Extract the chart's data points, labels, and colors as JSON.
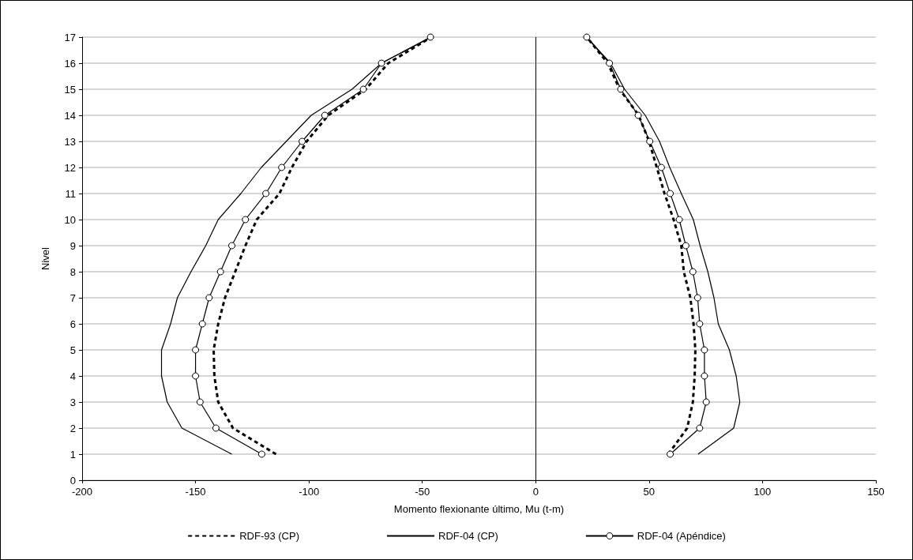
{
  "chart_data": {
    "type": "line",
    "xlabel": "Momento flexionante último, Mu (t-m)",
    "ylabel": "Nivel",
    "xlim": [
      -200,
      150
    ],
    "xticks": [
      -200,
      -150,
      -100,
      -50,
      0,
      50,
      100,
      150
    ],
    "ylim": [
      0,
      17
    ],
    "yticks": [
      0,
      1,
      2,
      3,
      4,
      5,
      6,
      7,
      8,
      9,
      10,
      11,
      12,
      13,
      14,
      15,
      16,
      17
    ],
    "grid": "y",
    "legend": "bottom",
    "ref_lines": [
      {
        "axis": "x",
        "value": 0,
        "color": "#000000"
      }
    ],
    "series": [
      {
        "name": "RDF-93 (CP)",
        "color": "#000000",
        "line_style": "dashed",
        "marker": "none",
        "x": [
          -114.5,
          -133.5,
          -140,
          -141.7,
          -142,
          -140,
          -137,
          -132.5,
          -128,
          -123,
          -113,
          -107.5,
          -101,
          -91.5,
          -75,
          -65,
          -46,
          null,
          58.5,
          66.8,
          69.3,
          70.1,
          70.4,
          69.6,
          68.2,
          65.3,
          64.2,
          60.8,
          56.8,
          53.4,
          50,
          45.4,
          37,
          31.8,
          22.5
        ],
        "values": [
          1,
          2,
          3,
          4,
          5,
          6,
          7,
          8,
          9,
          10,
          11,
          12,
          13,
          14,
          15,
          16,
          17,
          null,
          1,
          2,
          3,
          4,
          5,
          6,
          7,
          8,
          9,
          10,
          11,
          12,
          13,
          14,
          15,
          16,
          17
        ]
      },
      {
        "name": "RDF-04 (CP)",
        "color": "#000000",
        "line_style": "solid",
        "marker": "none",
        "x": [
          -134,
          -156,
          -162.5,
          -165,
          -165,
          -161,
          -158,
          -152,
          -145.5,
          -140,
          -130,
          -121,
          -110,
          -99,
          -81,
          -68,
          -46,
          null,
          71.6,
          87.3,
          90,
          88.4,
          85.4,
          80.5,
          78.6,
          75.9,
          72.5,
          69.5,
          64.2,
          59.1,
          54.6,
          48.3,
          39.2,
          33,
          22.5
        ],
        "values": [
          1,
          2,
          3,
          4,
          5,
          6,
          7,
          8,
          9,
          10,
          11,
          12,
          13,
          14,
          15,
          16,
          17,
          null,
          1,
          2,
          3,
          4,
          5,
          6,
          7,
          8,
          9,
          10,
          11,
          12,
          13,
          14,
          15,
          16,
          17
        ]
      },
      {
        "name": "RDF-04 (Apéndice)",
        "color": "#000000",
        "line_style": "solid",
        "marker": "circle",
        "x": [
          -120.8,
          -141,
          -148,
          -150,
          -150,
          -147,
          -144,
          -139,
          -134,
          -128,
          -119,
          -112,
          -103,
          -93,
          -76,
          -68,
          -46.4,
          null,
          59.3,
          72.3,
          75.2,
          74.4,
          74.4,
          72.3,
          71.4,
          69.3,
          66.2,
          63.3,
          59.3,
          55.4,
          50.3,
          45.2,
          37.5,
          32.5,
          22.5
        ],
        "values": [
          1,
          2,
          3,
          4,
          5,
          6,
          7,
          8,
          9,
          10,
          11,
          12,
          13,
          14,
          15,
          16,
          17,
          null,
          1,
          2,
          3,
          4,
          5,
          6,
          7,
          8,
          9,
          10,
          11,
          12,
          13,
          14,
          15,
          16,
          17
        ]
      }
    ]
  }
}
